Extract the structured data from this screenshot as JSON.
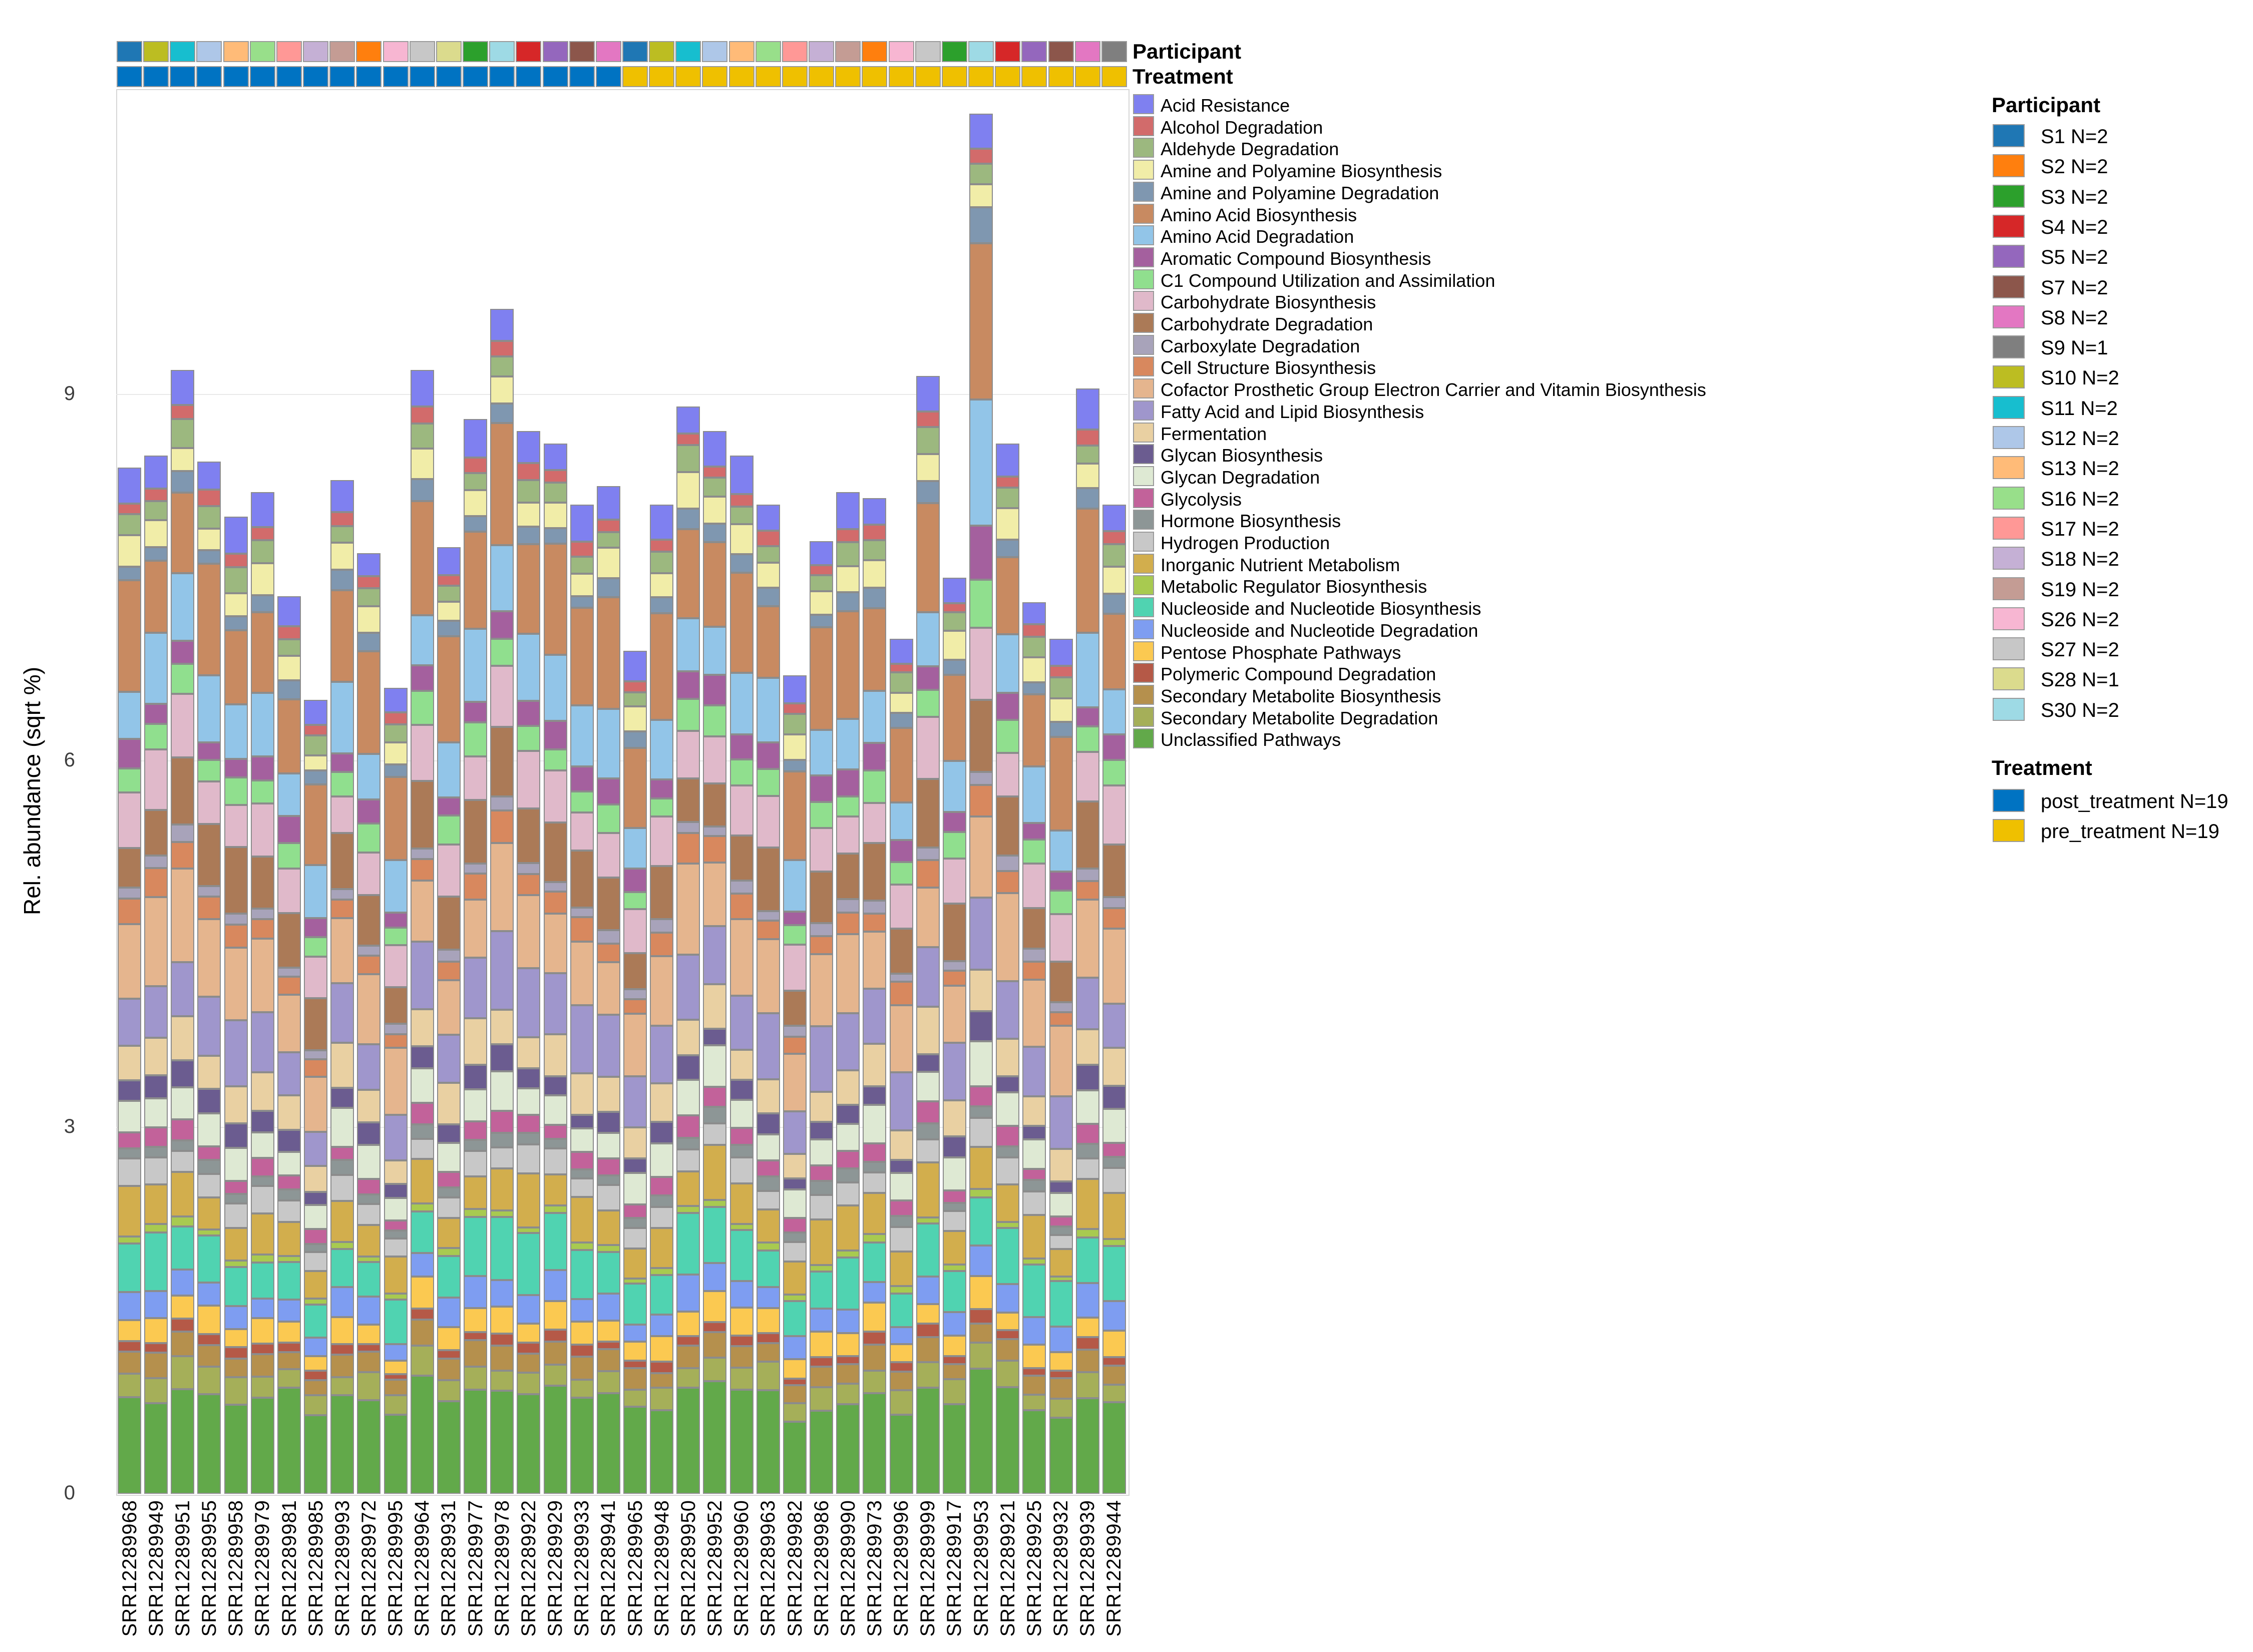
{
  "figure": {
    "background": "#ffffff"
  },
  "y_axis": {
    "title": "Rel. abundance (sqrt %)",
    "ticks": [
      0,
      3,
      6,
      9
    ],
    "grid_values": [
      3,
      6,
      9
    ]
  },
  "annotation_tracks": {
    "participant_label": "Participant",
    "treatment_label": "Treatment"
  },
  "legends": {
    "participant": {
      "title": "Participant",
      "items": [
        {
          "label": "S1 N=2",
          "color": "#1f77b4"
        },
        {
          "label": "S2 N=2",
          "color": "#ff7f0e"
        },
        {
          "label": "S3 N=2",
          "color": "#2ca02c"
        },
        {
          "label": "S4 N=2",
          "color": "#d62728"
        },
        {
          "label": "S5 N=2",
          "color": "#9467bd"
        },
        {
          "label": "S7 N=2",
          "color": "#8c564b"
        },
        {
          "label": "S8 N=2",
          "color": "#e377c2"
        },
        {
          "label": "S9 N=1",
          "color": "#7f7f7f"
        },
        {
          "label": "S10 N=2",
          "color": "#bcbd22"
        },
        {
          "label": "S11 N=2",
          "color": "#17becf"
        },
        {
          "label": "S12 N=2",
          "color": "#aec7e8"
        },
        {
          "label": "S13 N=2",
          "color": "#ffbb78"
        },
        {
          "label": "S16 N=2",
          "color": "#98df8a"
        },
        {
          "label": "S17 N=2",
          "color": "#ff9896"
        },
        {
          "label": "S18 N=2",
          "color": "#c5b0d5"
        },
        {
          "label": "S19 N=2",
          "color": "#c49c94"
        },
        {
          "label": "S26 N=2",
          "color": "#f7b6d2"
        },
        {
          "label": "S27 N=2",
          "color": "#c7c7c7"
        },
        {
          "label": "S28 N=1",
          "color": "#dbdb8d"
        },
        {
          "label": "S30 N=2",
          "color": "#9edae5"
        }
      ]
    },
    "treatment": {
      "title": "Treatment",
      "items": [
        {
          "label": "post_treatment N=19",
          "color": "#0073c2"
        },
        {
          "label": "pre_treatment N=19",
          "color": "#efc000"
        }
      ]
    }
  },
  "chart_data": {
    "type": "bar",
    "subtype": "stacked",
    "title": "",
    "xlabel": "",
    "ylabel": "Rel. abundance (sqrt %)",
    "ylim": [
      0,
      11.5
    ],
    "yticks": [
      0,
      3,
      6,
      9
    ],
    "grid": true,
    "legend_position": "right",
    "categories": [
      "SRR12289968",
      "SRR12289949",
      "SRR12289951",
      "SRR12289955",
      "SRR12289958",
      "SRR12289979",
      "SRR12289981",
      "SRR12289985",
      "SRR12289993",
      "SRR12289972",
      "SRR12289995",
      "SRR12289964",
      "SRR12289931",
      "SRR12289977",
      "SRR12289978",
      "SRR12289922",
      "SRR12289929",
      "SRR12289933",
      "SRR12289941",
      "SRR12289965",
      "SRR12289948",
      "SRR12289950",
      "SRR12289952",
      "SRR12289960",
      "SRR12289963",
      "SRR12289982",
      "SRR12289986",
      "SRR12289990",
      "SRR12289973",
      "SRR12289996",
      "SRR12289999",
      "SRR12289917",
      "SRR12289953",
      "SRR12289921",
      "SRR12289925",
      "SRR12289932",
      "SRR12289939",
      "SRR12289944"
    ],
    "samples": [
      {
        "id": "SRR12289968",
        "participant": "S1",
        "treatment": "post_treatment",
        "total": 8.4
      },
      {
        "id": "SRR12289949",
        "participant": "S10",
        "treatment": "post_treatment",
        "total": 8.5
      },
      {
        "id": "SRR12289951",
        "participant": "S11",
        "treatment": "post_treatment",
        "total": 9.2
      },
      {
        "id": "SRR12289955",
        "participant": "S12",
        "treatment": "post_treatment",
        "total": 8.45
      },
      {
        "id": "SRR12289958",
        "participant": "S13",
        "treatment": "post_treatment",
        "total": 8.0
      },
      {
        "id": "SRR12289979",
        "participant": "S16",
        "treatment": "post_treatment",
        "total": 8.2
      },
      {
        "id": "SRR12289981",
        "participant": "S17",
        "treatment": "post_treatment",
        "total": 7.35
      },
      {
        "id": "SRR12289985",
        "participant": "S18",
        "treatment": "post_treatment",
        "total": 6.5
      },
      {
        "id": "SRR12289993",
        "participant": "S19",
        "treatment": "post_treatment",
        "total": 8.3
      },
      {
        "id": "SRR12289972",
        "participant": "S2",
        "treatment": "post_treatment",
        "total": 7.7
      },
      {
        "id": "SRR12289995",
        "participant": "S26",
        "treatment": "post_treatment",
        "total": 6.6
      },
      {
        "id": "SRR12289964",
        "participant": "S27",
        "treatment": "post_treatment",
        "total": 9.2
      },
      {
        "id": "SRR12289931",
        "participant": "S28",
        "treatment": "post_treatment",
        "total": 7.75
      },
      {
        "id": "SRR12289977",
        "participant": "S3",
        "treatment": "post_treatment",
        "total": 8.8
      },
      {
        "id": "SRR12289978",
        "participant": "S30",
        "treatment": "post_treatment",
        "total": 9.7
      },
      {
        "id": "SRR12289922",
        "participant": "S4",
        "treatment": "post_treatment",
        "total": 8.7
      },
      {
        "id": "SRR12289929",
        "participant": "S5",
        "treatment": "post_treatment",
        "total": 8.6
      },
      {
        "id": "SRR12289933",
        "participant": "S7",
        "treatment": "post_treatment",
        "total": 8.1
      },
      {
        "id": "SRR12289941",
        "participant": "S8",
        "treatment": "post_treatment",
        "total": 8.25
      },
      {
        "id": "SRR12289965",
        "participant": "S1",
        "treatment": "pre_treatment",
        "total": 6.9
      },
      {
        "id": "SRR12289948",
        "participant": "S10",
        "treatment": "pre_treatment",
        "total": 8.1
      },
      {
        "id": "SRR12289950",
        "participant": "S11",
        "treatment": "pre_treatment",
        "total": 8.9
      },
      {
        "id": "SRR12289952",
        "participant": "S12",
        "treatment": "pre_treatment",
        "total": 8.7
      },
      {
        "id": "SRR12289960",
        "participant": "S13",
        "treatment": "pre_treatment",
        "total": 8.5
      },
      {
        "id": "SRR12289963",
        "participant": "S16",
        "treatment": "pre_treatment",
        "total": 8.1
      },
      {
        "id": "SRR12289982",
        "participant": "S17",
        "treatment": "pre_treatment",
        "total": 6.7
      },
      {
        "id": "SRR12289986",
        "participant": "S18",
        "treatment": "pre_treatment",
        "total": 7.8
      },
      {
        "id": "SRR12289990",
        "participant": "S19",
        "treatment": "pre_treatment",
        "total": 8.2
      },
      {
        "id": "SRR12289973",
        "participant": "S2",
        "treatment": "pre_treatment",
        "total": 8.15
      },
      {
        "id": "SRR12289996",
        "participant": "S26",
        "treatment": "pre_treatment",
        "total": 7.0
      },
      {
        "id": "SRR12289999",
        "participant": "S27",
        "treatment": "pre_treatment",
        "total": 9.15
      },
      {
        "id": "SRR12289917",
        "participant": "S3",
        "treatment": "pre_treatment",
        "total": 7.5
      },
      {
        "id": "SRR12289953",
        "participant": "S30",
        "treatment": "pre_treatment",
        "total": 11.3
      },
      {
        "id": "SRR12289921",
        "participant": "S4",
        "treatment": "pre_treatment",
        "total": 8.6
      },
      {
        "id": "SRR12289925",
        "participant": "S5",
        "treatment": "pre_treatment",
        "total": 7.3
      },
      {
        "id": "SRR12289932",
        "participant": "S7",
        "treatment": "pre_treatment",
        "total": 7.0
      },
      {
        "id": "SRR12289939",
        "participant": "S8",
        "treatment": "pre_treatment",
        "total": 9.05
      },
      {
        "id": "SRR12289944",
        "participant": "S9",
        "treatment": "pre_treatment",
        "total": 8.1
      }
    ],
    "pathways": [
      {
        "name": "Acid Resistance",
        "color": "#7f80f0",
        "share": 0.031
      },
      {
        "name": "Alcohol Degradation",
        "color": "#d26b6b",
        "share": 0.013
      },
      {
        "name": "Aldehyde Degradation",
        "color": "#9cb87f",
        "share": 0.021
      },
      {
        "name": "Amine and Polyamine Biosynthesis",
        "color": "#f1eda8",
        "share": 0.026
      },
      {
        "name": "Amine and Polyamine Degradation",
        "color": "#7f97b0",
        "share": 0.016
      },
      {
        "name": "Amino Acid Biosynthesis",
        "color": "#c88a61",
        "share": 0.093
      },
      {
        "name": "Amino Acid Degradation",
        "color": "#92c5e8",
        "share": 0.057
      },
      {
        "name": "Aromatic Compound Biosynthesis",
        "color": "#a4609e",
        "share": 0.023
      },
      {
        "name": "C1 Compound Utilization and Assimilation",
        "color": "#90df8e",
        "share": 0.026
      },
      {
        "name": "Carbohydrate Biosynthesis",
        "color": "#e0b9ca",
        "share": 0.047
      },
      {
        "name": "Carbohydrate Degradation",
        "color": "#ab7a57",
        "share": 0.052
      },
      {
        "name": "Carboxylate Degradation",
        "color": "#a8a3ba",
        "share": 0.012
      },
      {
        "name": "Cell Structure Biosynthesis",
        "color": "#d8885e",
        "share": 0.023
      },
      {
        "name": "Cofactor Prosthetic Group Electron Carrier and Vitamin Biosynthesis",
        "color": "#e5b58e",
        "share": 0.072
      },
      {
        "name": "Fatty Acid and Lipid Biosynthesis",
        "color": "#9f96cc",
        "share": 0.057
      },
      {
        "name": "Fermentation",
        "color": "#e9d0a2",
        "share": 0.036
      },
      {
        "name": "Glycan Biosynthesis",
        "color": "#6b5c90",
        "share": 0.019
      },
      {
        "name": "Glycan Degradation",
        "color": "#dee9d3",
        "share": 0.031
      },
      {
        "name": "Glycolysis",
        "color": "#c2629a",
        "share": 0.016
      },
      {
        "name": "Hormone Biosynthesis",
        "color": "#8d9696",
        "share": 0.012
      },
      {
        "name": "Hydrogen Production",
        "color": "#c8c8c8",
        "share": 0.023
      },
      {
        "name": "Inorganic Nutrient Metabolism",
        "color": "#d2ae4d",
        "share": 0.041
      },
      {
        "name": "Metabolic Regulator Biosynthesis",
        "color": "#a8ca50",
        "share": 0.007
      },
      {
        "name": "Nucleoside and Nucleotide Biosynthesis",
        "color": "#50d3b1",
        "share": 0.047
      },
      {
        "name": "Nucleoside and Nucleotide Degradation",
        "color": "#7e9df1",
        "share": 0.026
      },
      {
        "name": "Pentose Phosphate Pathways",
        "color": "#fbc951",
        "share": 0.023
      },
      {
        "name": "Polymeric Compound Degradation",
        "color": "#b55947",
        "share": 0.01
      },
      {
        "name": "Secondary Metabolite Biosynthesis",
        "color": "#b5904d",
        "share": 0.021
      },
      {
        "name": "Secondary Metabolite Degradation",
        "color": "#a5af59",
        "share": 0.023
      },
      {
        "name": "Unclassified Pathways",
        "color": "#62a94a",
        "share": 0.098
      }
    ],
    "share_overrides": {
      "SRR12289953": {
        "Amino Acid Biosynthesis": 0.13,
        "Amino Acid Degradation": 0.105,
        "Aromatic Compound Biosynthesis": 0.045,
        "C1 Compound Utilization and Assimilation": 0.04,
        "Carbohydrate Biosynthesis": 0.06,
        "Carbohydrate Degradation": 0.06,
        "Amine and Polyamine Degradation": 0.03,
        "Glycan Biosynthesis": 0.025
      }
    },
    "participant_colors": {
      "S1": "#1f77b4",
      "S2": "#ff7f0e",
      "S3": "#2ca02c",
      "S4": "#d62728",
      "S5": "#9467bd",
      "S7": "#8c564b",
      "S8": "#e377c2",
      "S9": "#7f7f7f",
      "S10": "#bcbd22",
      "S11": "#17becf",
      "S12": "#aec7e8",
      "S13": "#ffbb78",
      "S16": "#98df8a",
      "S17": "#ff9896",
      "S18": "#c5b0d5",
      "S19": "#c49c94",
      "S26": "#f7b6d2",
      "S27": "#c7c7c7",
      "S28": "#dbdb8d",
      "S30": "#9edae5"
    },
    "treatment_colors": {
      "post_treatment": "#0073c2",
      "pre_treatment": "#efc000"
    }
  }
}
